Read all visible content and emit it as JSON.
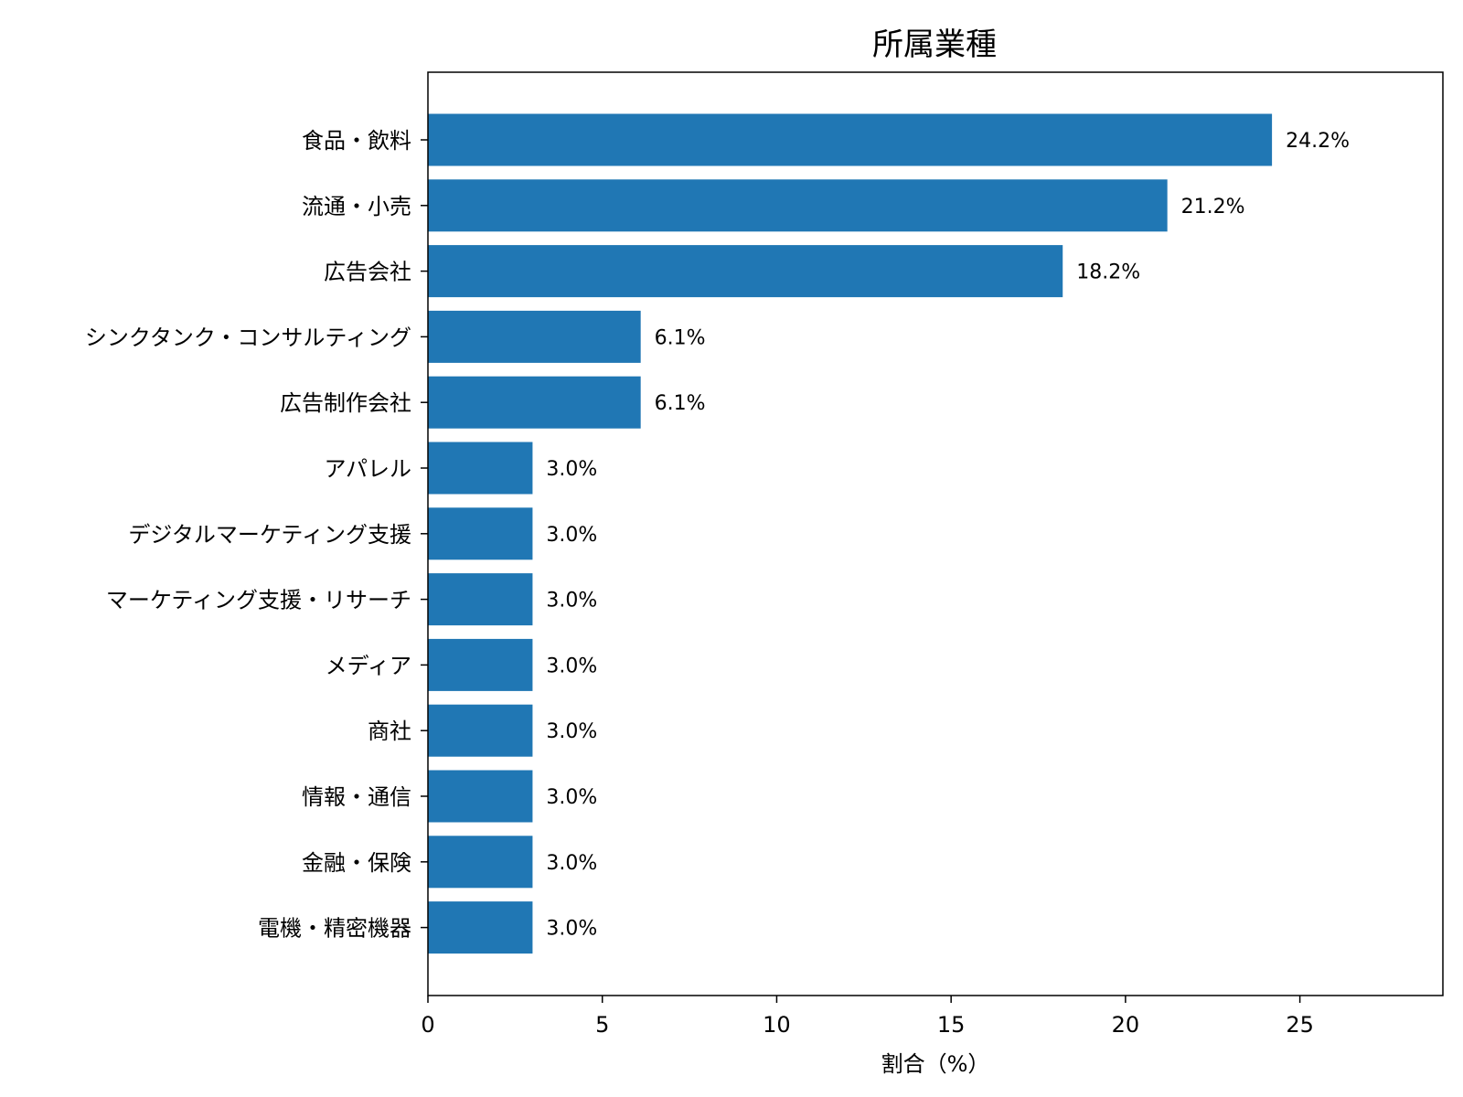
{
  "chart_data": {
    "type": "bar",
    "orientation": "horizontal",
    "title": "所属業種",
    "xlabel": "割合（%）",
    "ylabel": "",
    "xlim": [
      0,
      29.1
    ],
    "xticks": [
      0,
      5,
      10,
      15,
      20,
      25
    ],
    "bar_color": "#2077b4",
    "categories": [
      "食品・飲料",
      "流通・小売",
      "広告会社",
      "シンクタンク・コンサルティング",
      "広告制作会社",
      "アパレル",
      "デジタルマーケティング支援",
      "マーケティング支援・リサーチ",
      "メディア",
      "商社",
      "情報・通信",
      "金融・保険",
      "電機・精密機器"
    ],
    "values": [
      24.2,
      21.2,
      18.2,
      6.1,
      6.1,
      3.0,
      3.0,
      3.0,
      3.0,
      3.0,
      3.0,
      3.0,
      3.0
    ],
    "value_labels": [
      "24.2%",
      "21.2%",
      "18.2%",
      "6.1%",
      "6.1%",
      "3.0%",
      "3.0%",
      "3.0%",
      "3.0%",
      "3.0%",
      "3.0%",
      "3.0%",
      "3.0%"
    ],
    "grid": false,
    "legend": "none"
  }
}
